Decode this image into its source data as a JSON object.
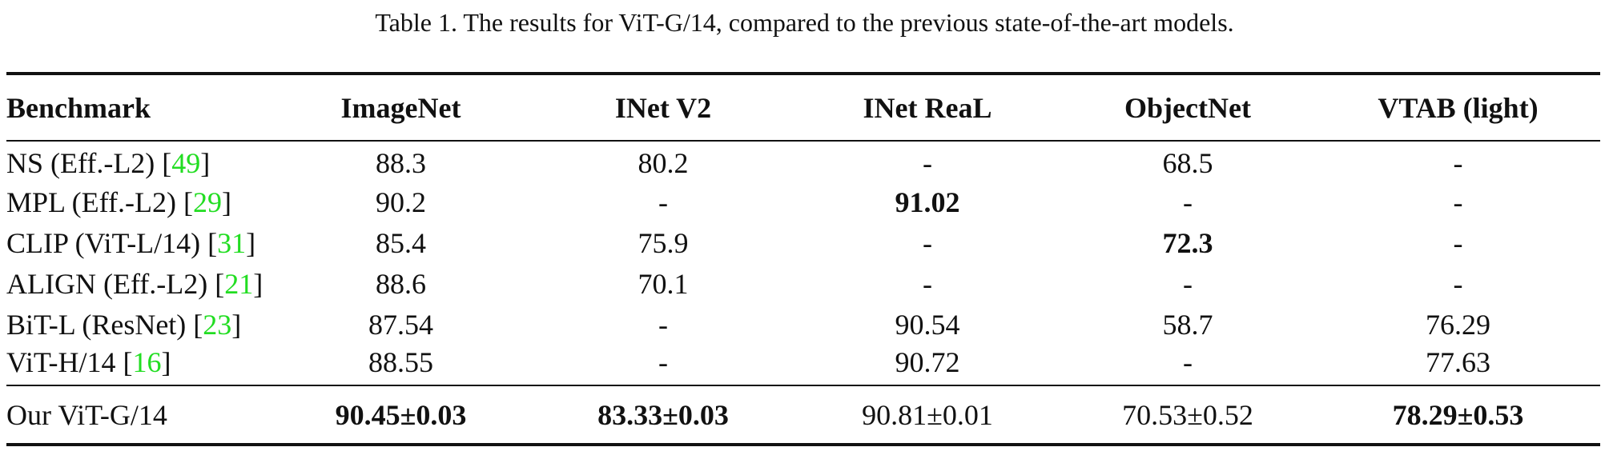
{
  "caption": "Table 1. The results for ViT-G/14, compared to the previous state-of-the-art models.",
  "table": {
    "headers": [
      "Benchmark",
      "ImageNet",
      "INet V2",
      "INet ReaL",
      "ObjectNet",
      "VTAB (light)"
    ],
    "rows": [
      {
        "model": "NS (Eff.-L2)",
        "cite": "49",
        "cells": [
          "88.3",
          "80.2",
          "-",
          "68.5",
          "-"
        ],
        "bold": [
          false,
          false,
          false,
          false,
          false
        ]
      },
      {
        "model": "MPL (Eff.-L2)",
        "cite": "29",
        "cells": [
          "90.2",
          "-",
          "91.02",
          "-",
          "-"
        ],
        "bold": [
          false,
          false,
          true,
          false,
          false
        ]
      },
      {
        "model": "CLIP (ViT-L/14)",
        "cite": "31",
        "cells": [
          "85.4",
          "75.9",
          "-",
          "72.3",
          "-"
        ],
        "bold": [
          false,
          false,
          false,
          true,
          false
        ]
      },
      {
        "model": "ALIGN (Eff.-L2)",
        "cite": "21",
        "cells": [
          "88.6",
          "70.1",
          "-",
          "-",
          "-"
        ],
        "bold": [
          false,
          false,
          false,
          false,
          false
        ]
      },
      {
        "model": "BiT-L (ResNet)",
        "cite": "23",
        "cells": [
          "87.54",
          "-",
          "90.54",
          "58.7",
          "76.29"
        ],
        "bold": [
          false,
          false,
          false,
          false,
          false
        ]
      },
      {
        "model": "ViT-H/14",
        "cite": "16",
        "cells": [
          "88.55",
          "-",
          "90.72",
          "-",
          "77.63"
        ],
        "bold": [
          false,
          false,
          false,
          false,
          false
        ]
      }
    ],
    "ours": {
      "model": "Our ViT-G/14",
      "cells": [
        "90.45±0.03",
        "83.33±0.03",
        "90.81±0.01",
        "70.53±0.52",
        "78.29±0.53"
      ],
      "bold": [
        true,
        true,
        false,
        false,
        true
      ]
    }
  },
  "colors": {
    "citation": "#22dd22",
    "text": "#111111",
    "rules": "#111111"
  }
}
